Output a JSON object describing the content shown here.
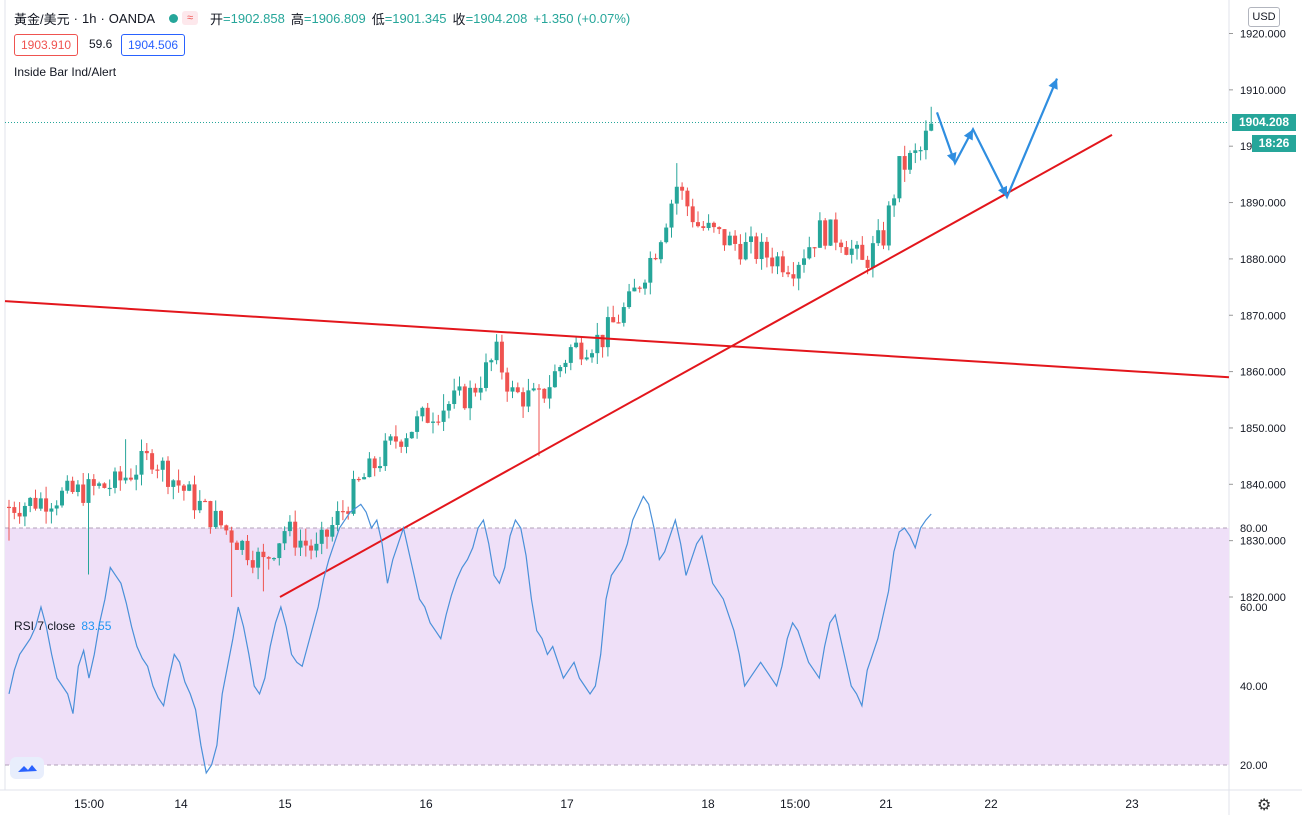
{
  "header": {
    "symbol": "黃金/美元",
    "interval": "1h",
    "broker": "OANDA",
    "open_label": "开",
    "open": "=1902.858",
    "high_label": "高",
    "high": "=1906.809",
    "low_label": "低",
    "low": "=1901.345",
    "close_label": "收",
    "close": "=1904.208",
    "change": "+1.350 (+0.07%)",
    "separator": "·",
    "wave_icon": "≈"
  },
  "quote": {
    "bid": "1903.910",
    "spread": "59.6",
    "ask": "1904.506"
  },
  "indicator_name": "Inside Bar Ind/Alert",
  "currency": "USD",
  "current_price": "1904.208",
  "countdown": "18:26",
  "rsi": {
    "label": "RSI 7 close",
    "value": "83.55"
  },
  "colors": {
    "up": "#26a69a",
    "down": "#ef5350",
    "trendline": "#e3161c",
    "arrows": "#2f8ee0",
    "rsi_line": "#4a90d9",
    "rsi_band": "#efe0f8"
  },
  "icons": {
    "logo": "tradingview-logo-icon",
    "settings": "gear-icon"
  },
  "chart_data": [
    {
      "type": "candlestick",
      "y_ticks": [
        "1820.000",
        "1830.000",
        "1840.000",
        "1850.000",
        "1860.000",
        "1870.000",
        "1880.000",
        "1890.000",
        "1900.000",
        "1910.000",
        "1920.000"
      ],
      "ylim": [
        1818,
        1925
      ],
      "x_ticks": [
        "15:00",
        "14",
        "15",
        "16",
        "17",
        "18",
        "15:00",
        "21",
        "22",
        "23"
      ],
      "anchors": [
        {
          "t": 0,
          "p": 1836
        },
        {
          "t": 20,
          "p": 1840
        },
        {
          "t": 27,
          "p": 1845
        },
        {
          "t": 34,
          "p": 1838
        },
        {
          "t": 42,
          "p": 1831
        },
        {
          "t": 48,
          "p": 1826
        },
        {
          "t": 52,
          "p": 1832
        },
        {
          "t": 58,
          "p": 1828
        },
        {
          "t": 66,
          "p": 1840
        },
        {
          "t": 73,
          "p": 1848
        },
        {
          "t": 80,
          "p": 1853
        },
        {
          "t": 87,
          "p": 1856
        },
        {
          "t": 92,
          "p": 1863
        },
        {
          "t": 95,
          "p": 1856
        },
        {
          "t": 100,
          "p": 1855
        },
        {
          "t": 106,
          "p": 1864
        },
        {
          "t": 112,
          "p": 1866
        },
        {
          "t": 117,
          "p": 1872
        },
        {
          "t": 122,
          "p": 1882
        },
        {
          "t": 126,
          "p": 1893
        },
        {
          "t": 130,
          "p": 1886
        },
        {
          "t": 136,
          "p": 1883
        },
        {
          "t": 142,
          "p": 1881
        },
        {
          "t": 148,
          "p": 1879
        },
        {
          "t": 153,
          "p": 1885
        },
        {
          "t": 157,
          "p": 1884
        },
        {
          "t": 161,
          "p": 1879
        },
        {
          "t": 165,
          "p": 1884
        },
        {
          "t": 168,
          "p": 1896
        },
        {
          "t": 172,
          "p": 1899
        },
        {
          "t": 174,
          "p": 1904
        }
      ],
      "lows": {
        "0": 1830,
        "15": 1824,
        "42": 1820,
        "48": 1821,
        "100": 1845,
        "148": 1877
      },
      "highs": {
        "22": 1848,
        "82": 1856,
        "126": 1897,
        "174": 1907
      }
    },
    {
      "type": "line",
      "name": "RSI 7 close",
      "ylim": [
        15,
        90
      ],
      "y_ticks": [
        "20.00",
        "40.00",
        "60.00",
        "80.00"
      ],
      "band": [
        20,
        80
      ],
      "values": [
        38,
        44,
        48,
        50,
        52,
        55,
        60,
        55,
        48,
        42,
        40,
        38,
        33,
        45,
        49,
        42,
        48,
        56,
        62,
        70,
        68,
        66,
        61,
        55,
        50,
        47,
        45,
        40,
        37,
        35,
        42,
        48,
        46,
        41,
        38,
        34,
        25,
        18,
        20,
        25,
        38,
        45,
        52,
        60,
        55,
        48,
        40,
        38,
        42,
        50,
        56,
        60,
        55,
        48,
        46,
        45,
        50,
        55,
        60,
        67,
        72,
        76,
        80,
        82,
        84,
        85,
        86,
        84,
        80,
        82,
        76,
        66,
        72,
        76,
        80,
        74,
        68,
        62,
        60,
        56,
        54,
        52,
        58,
        63,
        67,
        70,
        72,
        75,
        80,
        82,
        76,
        68,
        66,
        70,
        78,
        82,
        80,
        73,
        62,
        54,
        52,
        48,
        50,
        46,
        42,
        44,
        46,
        42,
        40,
        38,
        40,
        48,
        62,
        68,
        70,
        72,
        76,
        82,
        85,
        88,
        86,
        80,
        72,
        74,
        78,
        82,
        76,
        68,
        72,
        76,
        78,
        72,
        66,
        64,
        62,
        58,
        54,
        48,
        40,
        42,
        44,
        46,
        44,
        42,
        40,
        45,
        52,
        56,
        54,
        50,
        46,
        44,
        42,
        50,
        56,
        58,
        52,
        46,
        40,
        38,
        35,
        44,
        48,
        52,
        58,
        64,
        74,
        79,
        80,
        78,
        75,
        80,
        82,
        83.55
      ],
      "current": 83.55
    }
  ]
}
